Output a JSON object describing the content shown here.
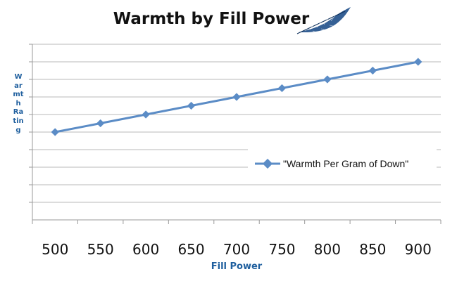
{
  "chart_data": {
    "type": "line",
    "title": "Warmth by Fill Power",
    "xlabel": "Fill Power",
    "ylabel": "Warmth Rating",
    "categories": [
      "500",
      "550",
      "600",
      "650",
      "700",
      "750",
      "800",
      "850",
      "900"
    ],
    "series": [
      {
        "name": "\"Warmth Per Gram of Down\"",
        "values": [
          5,
          5.5,
          6,
          6.5,
          7,
          7.5,
          8,
          8.5,
          9
        ],
        "color": "#5b8cc6"
      }
    ],
    "ylim": [
      0,
      10
    ],
    "grid": true,
    "legend": "right",
    "ytick_labels_shown": false
  },
  "decorations": {
    "feather_icon": "feather-icon",
    "feather_color": "#1f4f8a"
  }
}
